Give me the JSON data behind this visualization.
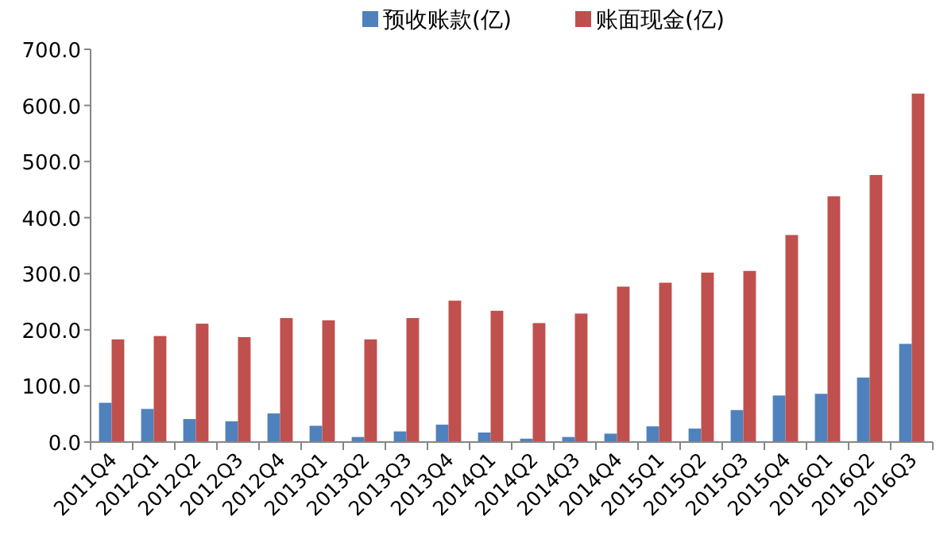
{
  "chart_data": {
    "type": "bar",
    "categories": [
      "2011Q4",
      "2012Q1",
      "2012Q2",
      "2012Q3",
      "2012Q4",
      "2013Q1",
      "2013Q2",
      "2013Q3",
      "2013Q4",
      "2014Q1",
      "2014Q2",
      "2014Q3",
      "2014Q4",
      "2015Q1",
      "2015Q2",
      "2015Q3",
      "2015Q4",
      "2016Q1",
      "2016Q2",
      "2016Q3"
    ],
    "series": [
      {
        "name": "预收账款(亿)",
        "color": "#4f81bd",
        "values": [
          70,
          59,
          41,
          37,
          51,
          29,
          9,
          19,
          31,
          17,
          6,
          9,
          15,
          28,
          24,
          57,
          83,
          86,
          115,
          175
        ]
      },
      {
        "name": "账面现金(亿)",
        "color": "#c0504d",
        "values": [
          183,
          189,
          211,
          187,
          221,
          217,
          183,
          221,
          252,
          234,
          212,
          229,
          277,
          284,
          302,
          305,
          369,
          438,
          476,
          621
        ]
      }
    ],
    "ylim": [
      0,
      700
    ],
    "yticks": [
      {
        "value": 0,
        "label": "0.0"
      },
      {
        "value": 100,
        "label": "100.0"
      },
      {
        "value": 200,
        "label": "200.0"
      },
      {
        "value": 300,
        "label": "300.0"
      },
      {
        "value": 400,
        "label": "400.0"
      },
      {
        "value": 500,
        "label": "500.0"
      },
      {
        "value": 600,
        "label": "600.0"
      },
      {
        "value": 700,
        "label": "700.0"
      }
    ],
    "grid": false,
    "legend": "top"
  }
}
